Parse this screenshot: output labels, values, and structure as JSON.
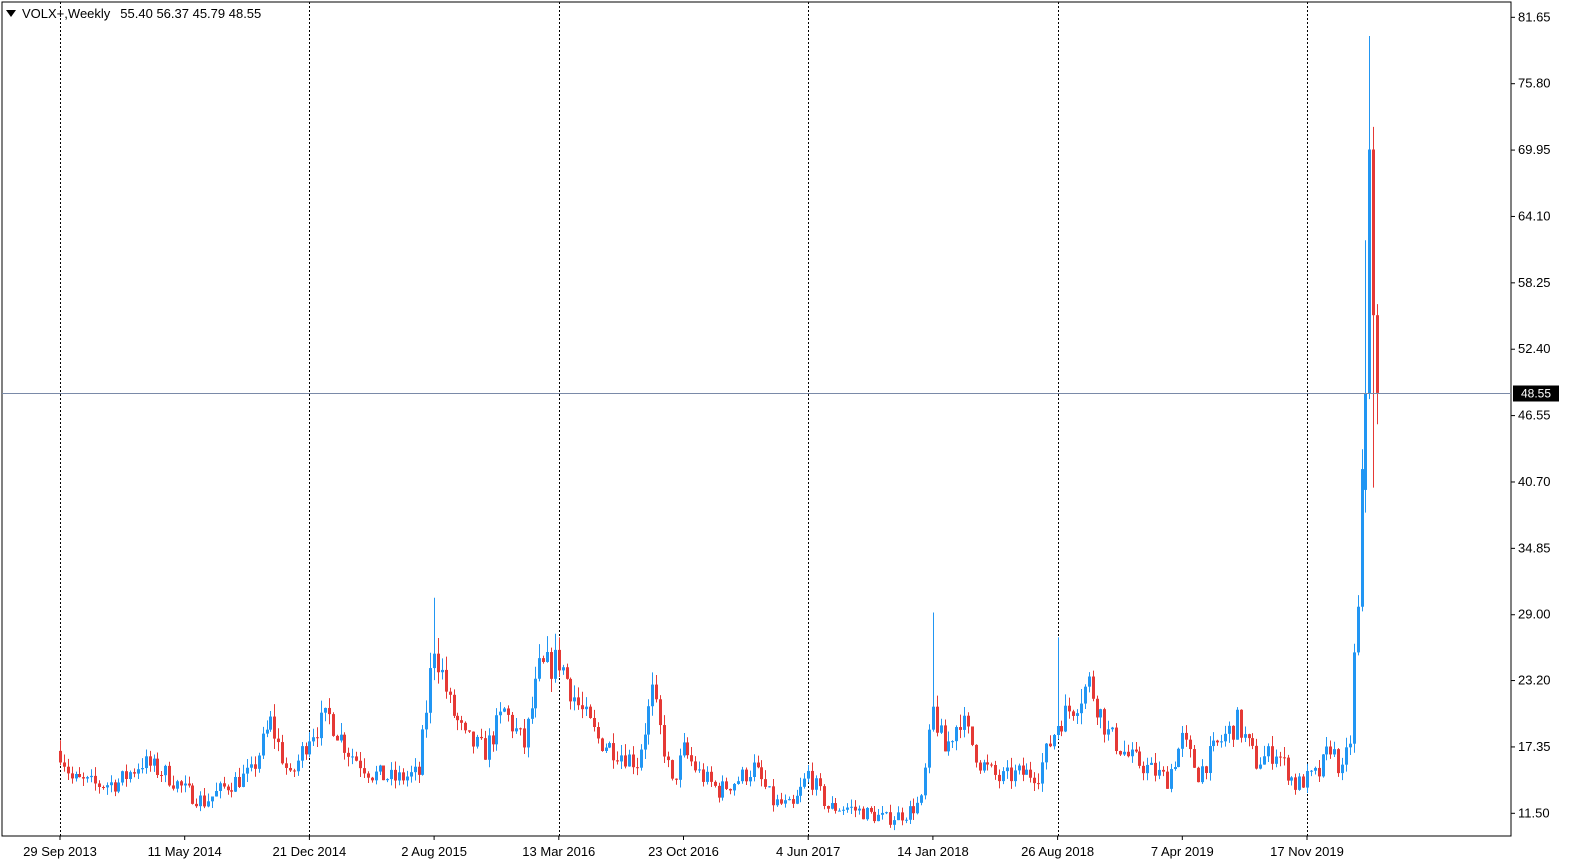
{
  "header": {
    "symbol": "VOLX+",
    "timeframe": "Weekly",
    "ohlc": "55.40 56.37 45.79 48.55"
  },
  "colors": {
    "up": "#2196f3",
    "down": "#e53935",
    "grid": "#000000",
    "price_line": "#7a8aa8",
    "price_label_bg": "#000000",
    "price_label_fg": "#ffffff"
  },
  "chart_data": {
    "type": "candlestick",
    "title": "VOLX+,Weekly",
    "ylim": [
      9.5,
      83.0
    ],
    "y_ticks": [
      "81.65",
      "75.80",
      "69.95",
      "64.10",
      "58.25",
      "52.40",
      "46.55",
      "40.70",
      "34.85",
      "29.00",
      "23.20",
      "17.35",
      "11.50"
    ],
    "x_ticks": [
      "29 Sep 2013",
      "11 May 2014",
      "21 Dec 2014",
      "2 Aug 2015",
      "13 Mar 2016",
      "23 Oct 2016",
      "4 Jun 2017",
      "14 Jan 2018",
      "26 Aug 2018",
      "7 Apr 2019",
      "17 Nov 2019"
    ],
    "separator_labels": [
      "29 Sep 2013",
      "21 Dec 2014",
      "13 Mar 2016",
      "4 Jun 2017",
      "26 Aug 2018",
      "17 Nov 2019"
    ],
    "last_price": "48.55",
    "grid": "vertical separators only",
    "legend": "none",
    "close_path_points": [
      [
        "29 Sep 2013",
        17.0
      ],
      [
        "20 Oct 2013",
        14.5
      ],
      [
        "1 Dec 2013",
        14.0
      ],
      [
        "12 Jan 2014",
        14.2
      ],
      [
        "23 Feb 2014",
        16.0
      ],
      [
        "6 Apr 2014",
        15.0
      ],
      [
        "11 May 2014",
        13.5
      ],
      [
        "15 Jun 2014",
        12.5
      ],
      [
        "27 Jul 2014",
        14.0
      ],
      [
        "7 Sep 2014",
        15.0
      ],
      [
        "12 Oct 2014",
        19.5
      ],
      [
        "16 Nov 2014",
        14.5
      ],
      [
        "21 Dec 2014",
        18.5
      ],
      [
        "25 Jan 2015",
        20.0
      ],
      [
        "1 Mar 2015",
        17.0
      ],
      [
        "12 Apr 2015",
        15.0
      ],
      [
        "24 May 2015",
        14.5
      ],
      [
        "5 Jul 2015",
        15.0
      ],
      [
        "2 Aug 2015",
        26.5
      ],
      [
        "30 Aug 2015",
        21.0
      ],
      [
        "27 Sep 2015",
        18.0
      ],
      [
        "1 Nov 2015",
        17.0
      ],
      [
        "6 Dec 2015",
        20.5
      ],
      [
        "10 Jan 2016",
        17.5
      ],
      [
        "7 Feb 2016",
        24.0
      ],
      [
        "13 Mar 2016",
        25.0
      ],
      [
        "17 Apr 2016",
        21.0
      ],
      [
        "22 May 2016",
        18.0
      ],
      [
        "26 Jun 2016",
        17.0
      ],
      [
        "31 Jul 2016",
        16.0
      ],
      [
        "28 Aug 2016",
        22.0
      ],
      [
        "2 Oct 2016",
        14.0
      ],
      [
        "23 Oct 2016",
        17.0
      ],
      [
        "20 Nov 2016",
        15.0
      ],
      [
        "25 Dec 2016",
        13.5
      ],
      [
        "29 Jan 2017",
        14.5
      ],
      [
        "26 Feb 2017",
        15.5
      ],
      [
        "2 Apr 2017",
        12.5
      ],
      [
        "7 May 2017",
        12.0
      ],
      [
        "4 Jun 2017",
        15.0
      ],
      [
        "9 Jul 2017",
        12.0
      ],
      [
        "13 Aug 2017",
        12.0
      ],
      [
        "17 Sep 2017",
        11.5
      ],
      [
        "22 Oct 2017",
        11.0
      ],
      [
        "26 Nov 2017",
        11.5
      ],
      [
        "24 Dec 2017",
        12.5
      ],
      [
        "14 Jan 2018",
        20.5
      ],
      [
        "4 Feb 2018",
        17.0
      ],
      [
        "4 Mar 2018",
        20.0
      ],
      [
        "8 Apr 2018",
        16.0
      ],
      [
        "13 May 2018",
        14.5
      ],
      [
        "17 Jun 2018",
        15.0
      ],
      [
        "22 Jul 2018",
        15.0
      ],
      [
        "26 Aug 2018",
        19.5
      ],
      [
        "23 Sep 2018",
        21.0
      ],
      [
        "21 Oct 2018",
        23.0
      ],
      [
        "25 Nov 2018",
        18.5
      ],
      [
        "30 Dec 2018",
        16.5
      ],
      [
        "3 Feb 2019",
        15.5
      ],
      [
        "10 Mar 2019",
        14.5
      ],
      [
        "7 Apr 2019",
        18.0
      ],
      [
        "5 May 2019",
        15.0
      ],
      [
        "9 Jun 2019",
        17.5
      ],
      [
        "14 Jul 2019",
        19.5
      ],
      [
        "18 Aug 2019",
        16.0
      ],
      [
        "22 Sep 2019",
        17.0
      ],
      [
        "27 Oct 2019",
        14.0
      ],
      [
        "17 Nov 2019",
        14.5
      ],
      [
        "8 Dec 2019",
        15.0
      ],
      [
        "29 Dec 2019",
        17.5
      ],
      [
        "19 Jan 2020",
        15.0
      ],
      [
        "2 Feb 2020",
        18.0
      ],
      [
        "9 Feb 2020",
        25.0
      ],
      [
        "16 Feb 2020",
        29.0
      ],
      [
        "23 Feb 2020",
        40.0
      ],
      [
        "1 Mar 2020",
        48.5
      ],
      [
        "8 Mar 2020",
        70.0
      ],
      [
        "15 Mar 2020",
        55.4
      ],
      [
        "22 Mar 2020",
        48.55
      ]
    ],
    "special_candles": [
      {
        "date": "1 Mar 2020",
        "open": 40.0,
        "high": 62.0,
        "low": 38.0,
        "close": 48.5
      },
      {
        "date": "8 Mar 2020",
        "open": 48.5,
        "high": 80.0,
        "low": 48.0,
        "close": 70.0
      },
      {
        "date": "15 Mar 2020",
        "open": 70.0,
        "high": 72.0,
        "low": 40.2,
        "close": 55.4
      },
      {
        "date": "22 Mar 2020",
        "open": 55.4,
        "high": 56.37,
        "low": 45.79,
        "close": 48.55
      }
    ],
    "spike_highs": [
      {
        "date": "2 Aug 2015",
        "high": 30.5
      },
      {
        "date": "14 Jan 2018",
        "high": 29.2
      },
      {
        "date": "13 Mar 2016",
        "high": 27.0
      },
      {
        "date": "26 Aug 2018",
        "high": 27.0
      }
    ]
  }
}
